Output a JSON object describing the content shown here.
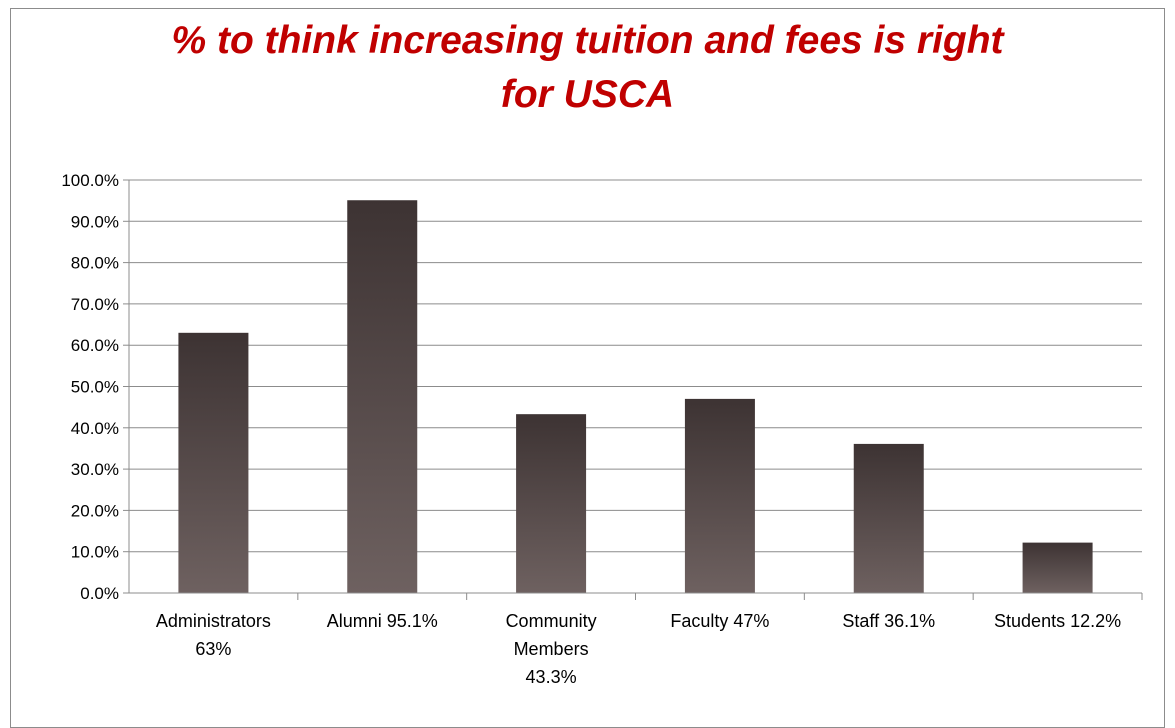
{
  "chart_data": {
    "type": "bar",
    "title_lines": [
      "% to think increasing tuition and fees is right",
      "for USCA"
    ],
    "categories": [
      [
        "Administrators",
        "63%"
      ],
      [
        "Alumni 95.1%"
      ],
      [
        "Community",
        "Members",
        "43.3%"
      ],
      [
        "Faculty 47%"
      ],
      [
        "Staff 36.1%"
      ],
      [
        "Students 12.2%"
      ]
    ],
    "values": [
      63.0,
      95.1,
      43.3,
      47.0,
      36.1,
      12.2
    ],
    "ylim": [
      0,
      100
    ],
    "yticks": [
      "0.0%",
      "10.0%",
      "20.0%",
      "30.0%",
      "40.0%",
      "50.0%",
      "60.0%",
      "70.0%",
      "80.0%",
      "90.0%",
      "100.0%"
    ],
    "grid": true,
    "legend": "none",
    "bar_color_top": "#3d3333",
    "bar_color_bottom": "#6e6160",
    "title_color": "#c00000"
  }
}
